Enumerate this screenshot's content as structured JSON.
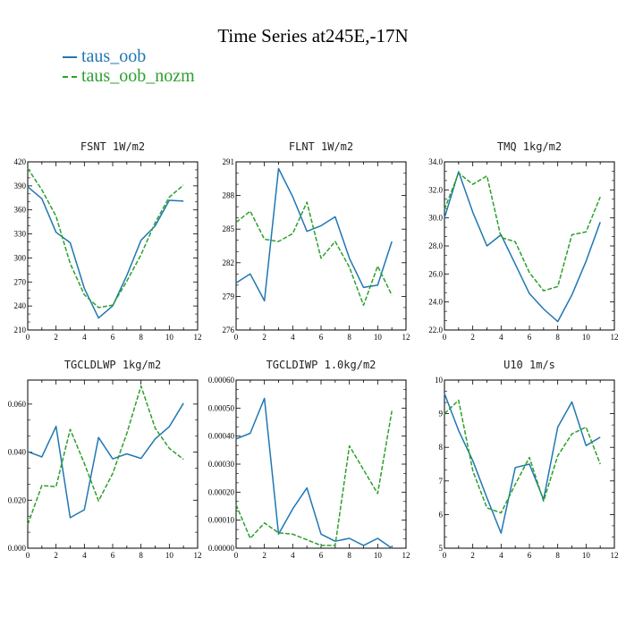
{
  "title": "Time Series at245E,-17N",
  "colors": {
    "taus_oob": "#1f77b4",
    "taus_oob_nozm": "#2ca02c"
  },
  "legend": [
    {
      "name": "taus_oob",
      "color": "#1f77b4",
      "dash": "solid"
    },
    {
      "name": "taus_oob_nozm",
      "color": "#2ca02c",
      "dash": "dashed"
    }
  ],
  "chart_data": [
    {
      "type": "line",
      "title": "FSNT  1W/m2",
      "x": [
        0,
        1,
        2,
        3,
        4,
        5,
        6,
        7,
        8,
        9,
        10,
        11
      ],
      "xticks": [
        0,
        2,
        4,
        6,
        8,
        10,
        12
      ],
      "xlim": [
        0,
        12
      ],
      "ylim": [
        210,
        420
      ],
      "yticks": [
        210,
        240,
        270,
        300,
        330,
        360,
        390,
        420
      ],
      "ytick_labels": [
        "210",
        "240",
        "270",
        "300",
        "330",
        "360",
        "390",
        "420"
      ],
      "series": [
        {
          "name": "taus_oob",
          "values": [
            389,
            374,
            332,
            319,
            262,
            225,
            240,
            278,
            322,
            340,
            372,
            371
          ]
        },
        {
          "name": "taus_oob_nozm",
          "values": [
            412,
            385,
            352,
            293,
            254,
            238,
            241,
            271,
            304,
            344,
            376,
            391
          ]
        }
      ]
    },
    {
      "type": "line",
      "title": "FLNT  1W/m2",
      "x": [
        0,
        1,
        2,
        3,
        4,
        5,
        6,
        7,
        8,
        9,
        10,
        11
      ],
      "xticks": [
        0,
        2,
        4,
        6,
        8,
        10,
        12
      ],
      "xlim": [
        0,
        12
      ],
      "ylim": [
        276,
        291
      ],
      "yticks": [
        276,
        279,
        282,
        285,
        288,
        291
      ],
      "ytick_labels": [
        "276",
        "279",
        "282",
        "285",
        "288",
        "291"
      ],
      "series": [
        {
          "name": "taus_oob",
          "values": [
            280.2,
            281.0,
            278.6,
            290.4,
            287.9,
            284.8,
            285.3,
            286.1,
            282.4,
            279.8,
            280.0,
            283.9
          ]
        },
        {
          "name": "taus_oob_nozm",
          "values": [
            285.6,
            286.6,
            284.1,
            283.9,
            284.6,
            287.4,
            282.4,
            283.9,
            281.6,
            278.2,
            281.7,
            279.1
          ]
        }
      ]
    },
    {
      "type": "line",
      "title": "TMQ  1kg/m2",
      "x": [
        0,
        1,
        2,
        3,
        4,
        5,
        6,
        7,
        8,
        9,
        10,
        11
      ],
      "xticks": [
        0,
        2,
        4,
        6,
        8,
        10,
        12
      ],
      "xlim": [
        0,
        12
      ],
      "ylim": [
        22.0,
        34.0
      ],
      "yticks": [
        22,
        24,
        26,
        28,
        30,
        32,
        34
      ],
      "ytick_labels": [
        "22.0",
        "24.0",
        "26.0",
        "28.0",
        "30.0",
        "32.0",
        "34.0"
      ],
      "series": [
        {
          "name": "taus_oob",
          "values": [
            30.0,
            33.3,
            30.4,
            28.0,
            28.8,
            26.7,
            24.6,
            23.5,
            22.6,
            24.5,
            26.9,
            29.7
          ]
        },
        {
          "name": "taus_oob_nozm",
          "values": [
            30.6,
            33.2,
            32.4,
            33.0,
            28.6,
            28.3,
            26.1,
            24.8,
            25.1,
            28.8,
            29.0,
            31.5
          ]
        }
      ]
    },
    {
      "type": "line",
      "title": "TGCLDLWP  1kg/m2",
      "x": [
        0,
        1,
        2,
        3,
        4,
        5,
        6,
        7,
        8,
        9,
        10,
        11
      ],
      "xticks": [
        0,
        2,
        4,
        6,
        8,
        10,
        12
      ],
      "xlim": [
        0,
        12
      ],
      "ylim": [
        0,
        0.07
      ],
      "yticks": [
        0,
        0.02,
        0.04,
        0.06
      ],
      "ytick_labels": [
        "0.000",
        "0.020",
        "0.040",
        "0.060"
      ],
      "series": [
        {
          "name": "taus_oob",
          "values": [
            0.0402,
            0.038,
            0.0507,
            0.0127,
            0.016,
            0.0461,
            0.0372,
            0.0393,
            0.0374,
            0.0455,
            0.0506,
            0.0604
          ]
        },
        {
          "name": "taus_oob_nozm",
          "values": [
            0.0098,
            0.0261,
            0.0256,
            0.0495,
            0.0353,
            0.0197,
            0.0311,
            0.0478,
            0.0675,
            0.05,
            0.0416,
            0.037
          ]
        }
      ]
    },
    {
      "type": "line",
      "title": "TGCLDIWP  1.0kg/m2",
      "x": [
        0,
        1,
        2,
        3,
        4,
        5,
        6,
        7,
        8,
        9,
        10,
        11
      ],
      "xticks": [
        0,
        2,
        4,
        6,
        8,
        10,
        12
      ],
      "xlim": [
        0,
        12
      ],
      "ylim": [
        0,
        0.0006
      ],
      "yticks": [
        0,
        0.0001,
        0.0002,
        0.0003,
        0.0004,
        0.0005,
        0.0006
      ],
      "ytick_labels": [
        "0.00000",
        "0.00010",
        "0.00020",
        "0.00030",
        "0.00040",
        "0.00050",
        "0.00060"
      ],
      "series": [
        {
          "name": "taus_oob",
          "values": [
            0.00039,
            0.00041,
            0.000535,
            5e-05,
            0.00014,
            0.000215,
            5e-05,
            2.5e-05,
            3.5e-05,
            1e-05,
            3.5e-05,
            0.0
          ]
        },
        {
          "name": "taus_oob_nozm",
          "values": [
            0.000155,
            3.5e-05,
            9e-05,
            5.5e-05,
            5e-05,
            3e-05,
            1e-05,
            1e-05,
            0.000365,
            0.00028,
            0.000195,
            0.00049
          ]
        }
      ]
    },
    {
      "type": "line",
      "title": "U10  1m/s",
      "x": [
        0,
        1,
        2,
        3,
        4,
        5,
        6,
        7,
        8,
        9,
        10,
        11
      ],
      "xticks": [
        0,
        2,
        4,
        6,
        8,
        10,
        12
      ],
      "xlim": [
        0,
        12
      ],
      "ylim": [
        5,
        10
      ],
      "yticks": [
        5,
        6,
        7,
        8,
        9,
        10
      ],
      "ytick_labels": [
        "5",
        "6",
        "7",
        "8",
        "9",
        "10"
      ],
      "series": [
        {
          "name": "taus_oob",
          "values": [
            9.6,
            8.5,
            7.6,
            6.5,
            5.45,
            7.4,
            7.5,
            6.45,
            8.6,
            9.35,
            8.05,
            8.3
          ]
        },
        {
          "name": "taus_oob_nozm",
          "values": [
            9.0,
            9.4,
            7.3,
            6.2,
            6.05,
            6.9,
            7.7,
            6.4,
            7.75,
            8.4,
            8.6,
            7.5
          ]
        }
      ]
    }
  ]
}
